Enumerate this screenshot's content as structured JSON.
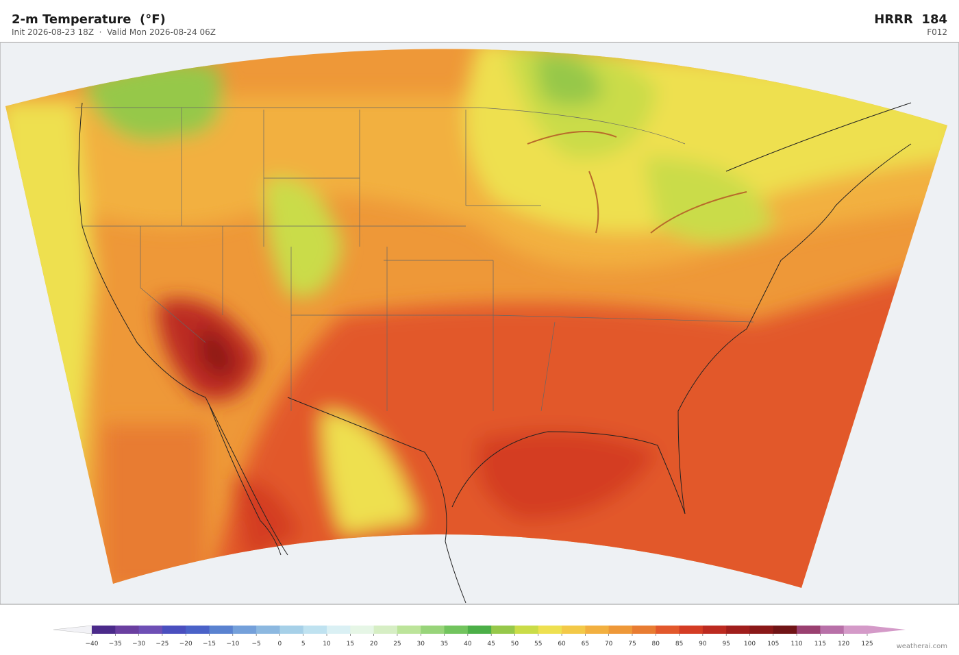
{
  "header": {
    "title": "2-m Temperature  (°F)",
    "subtitle": "Init 2026-08-23 18Z  ·  Valid Mon 2026-08-24 06Z",
    "model": "HRRR  184",
    "forecast_hour": "F012"
  },
  "colorbar": {
    "ticks": [
      {
        "value": -40,
        "label": "−40"
      },
      {
        "value": -35,
        "label": "−35"
      },
      {
        "value": -30,
        "label": "−30"
      },
      {
        "value": -25,
        "label": "−25"
      },
      {
        "value": -20,
        "label": "−20"
      },
      {
        "value": -15,
        "label": "−15"
      },
      {
        "value": -10,
        "label": "−10"
      },
      {
        "value": -5,
        "label": "−5"
      },
      0,
      5,
      10,
      15,
      20,
      25,
      30,
      35,
      40,
      45,
      50,
      55,
      60,
      65,
      70,
      75,
      80,
      85,
      90,
      95,
      100,
      105,
      110,
      115,
      120,
      125
    ],
    "colors": [
      "#4b2a8a",
      "#6a3fa0",
      "#6e4fb5",
      "#4a4fbf",
      "#4a62c8",
      "#5a82d0",
      "#74a0da",
      "#8cb8e0",
      "#a6d0e8",
      "#bfe2f0",
      "#daf0f4",
      "#e6f6e6",
      "#d6eec4",
      "#bce49a",
      "#98d47a",
      "#72c45e",
      "#4caf48",
      "#96c84a",
      "#cadc48",
      "#eee050",
      "#f3c948",
      "#f2b040",
      "#ee9838",
      "#e87c32",
      "#e2582c",
      "#d43c24",
      "#bc2a20",
      "#a01e1c",
      "#8a1818",
      "#701416",
      "#9a4070",
      "#b870a8",
      "#d49ac8"
    ],
    "under_color": "#f2f2f6",
    "over_color": "#d49ac8"
  },
  "footer": {
    "credit": "weatherai.com"
  }
}
